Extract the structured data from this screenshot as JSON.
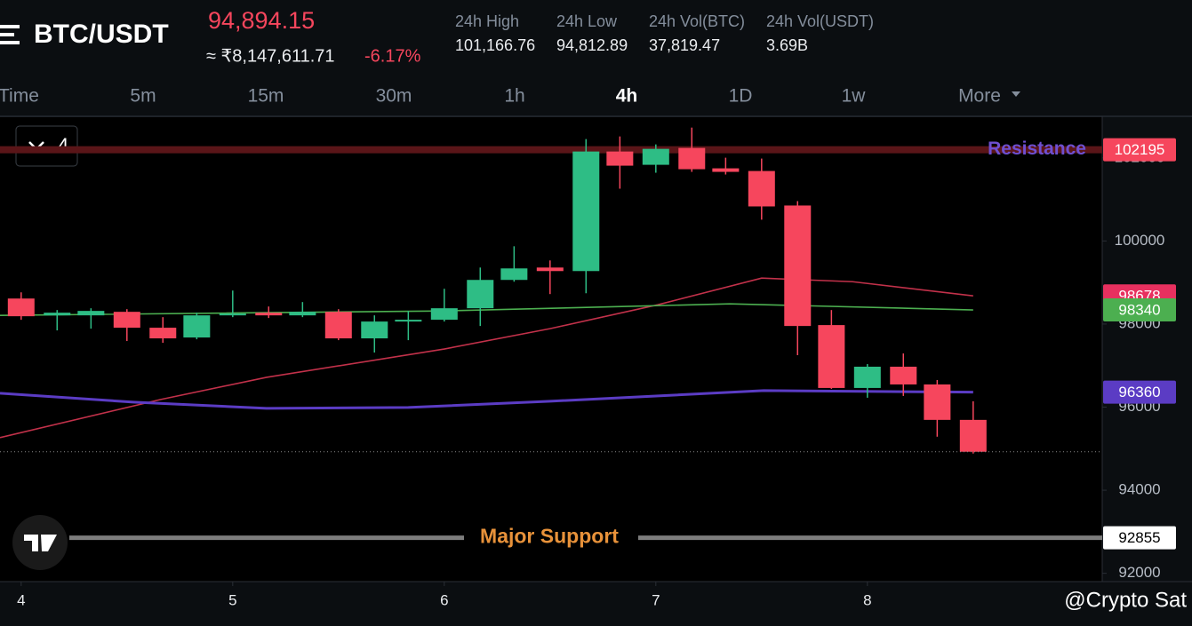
{
  "header": {
    "pair": "BTC/USDT",
    "price": "94,894.15",
    "price_inr": "≈ ₹8,147,611.71",
    "change": "-6.17%",
    "stats": [
      {
        "label": "24h High",
        "value": "101,166.76"
      },
      {
        "label": "24h Low",
        "value": "94,812.89"
      },
      {
        "label": "24h Vol(BTC)",
        "value": "37,819.47"
      },
      {
        "label": "24h Vol(USDT)",
        "value": "3.69B"
      }
    ]
  },
  "timeframes": {
    "items": [
      "Time",
      "5m",
      "15m",
      "30m",
      "1h",
      "4h",
      "1D",
      "1w",
      "More"
    ],
    "active_index": 5
  },
  "indicator_count": "4",
  "watermark": "@Crypto Sat",
  "chart_data": {
    "type": "candlestick",
    "x": [
      4,
      4.17,
      4.33,
      4.5,
      4.67,
      4.83,
      5,
      5.17,
      5.33,
      5.5,
      5.67,
      5.83,
      6,
      6.17,
      6.33,
      6.5,
      6.67,
      6.83,
      7,
      7.17,
      7.33,
      7.5,
      7.67,
      7.83,
      8,
      8.17,
      8.33,
      8.5
    ],
    "open": [
      98614,
      98209,
      98209,
      98294,
      97911,
      97676,
      98209,
      98273,
      98209,
      98294,
      97655,
      98060,
      98103,
      98380,
      99062,
      99360,
      99275,
      102153,
      101833,
      102239,
      101748,
      101684,
      100853,
      97975,
      96461,
      96973,
      96546,
      95693
    ],
    "high": [
      98763,
      98337,
      98380,
      98358,
      98166,
      98273,
      98806,
      98422,
      98529,
      98358,
      98209,
      98316,
      98849,
      99360,
      99872,
      99531,
      102452,
      102516,
      102324,
      102729,
      102004,
      101983,
      100959,
      98337,
      97036,
      97292,
      96653,
      96141
    ],
    "low": [
      98102,
      97847,
      97889,
      97591,
      97548,
      97633,
      98166,
      98145,
      98166,
      97612,
      97314,
      97612,
      98060,
      97953,
      99019,
      98721,
      98742,
      101258,
      101642,
      101663,
      101599,
      100512,
      97250,
      96440,
      96226,
      96269,
      95288,
      94883
    ],
    "close": [
      98188,
      98273,
      98316,
      97911,
      97655,
      98209,
      98252,
      98209,
      98294,
      97655,
      98060,
      98103,
      98380,
      99062,
      99339,
      99275,
      102153,
      101812,
      102217,
      101727,
      101663,
      100831,
      97953,
      96461,
      96973,
      96546,
      95693,
      94926
    ],
    "up_color": "#2ebd85",
    "down_color": "#f6465d",
    "lines": [
      {
        "color": "#c2314a",
        "x": [
          3.9,
          4.66,
          5.16,
          6,
          6.5,
          7.01,
          7.5,
          7.93,
          8.5
        ],
        "values": [
          95267,
          96184,
          96717,
          97399,
          97889,
          98465,
          99105,
          99019,
          98678
        ],
        "tag_color": "#e8305f"
      },
      {
        "color": "#4caf50",
        "x": [
          3.9,
          6,
          6.84,
          7.35,
          8.5
        ],
        "values": [
          98209,
          98316,
          98422,
          98486,
          98340
        ],
        "tag_color": "#4caf50"
      },
      {
        "color": "#5b3cc4",
        "x": [
          3.9,
          4.53,
          5.16,
          5.83,
          6.5,
          7.51,
          8.5
        ],
        "values": [
          96333,
          96120,
          95970,
          95991,
          96141,
          96397,
          96360
        ],
        "tag_color": "#5b3cc4"
      }
    ],
    "levels": [
      {
        "label": "Resistance",
        "value": 102195,
        "color": "#5a1518",
        "label_color": "#6e4fd0",
        "tag_color": "#f6465d"
      },
      {
        "label": "Major Support",
        "value": 92855,
        "color": "#7d7d7d",
        "label_color": "#e8923a",
        "tag_color": "#ffffff"
      }
    ],
    "xlim": [
      3.9,
      9.11
    ],
    "ylim": [
      91800,
      103000
    ],
    "xticks": [
      4,
      5,
      6,
      7,
      8
    ],
    "yticks": [
      92000,
      94000,
      96000,
      98000,
      100000,
      102000
    ]
  }
}
